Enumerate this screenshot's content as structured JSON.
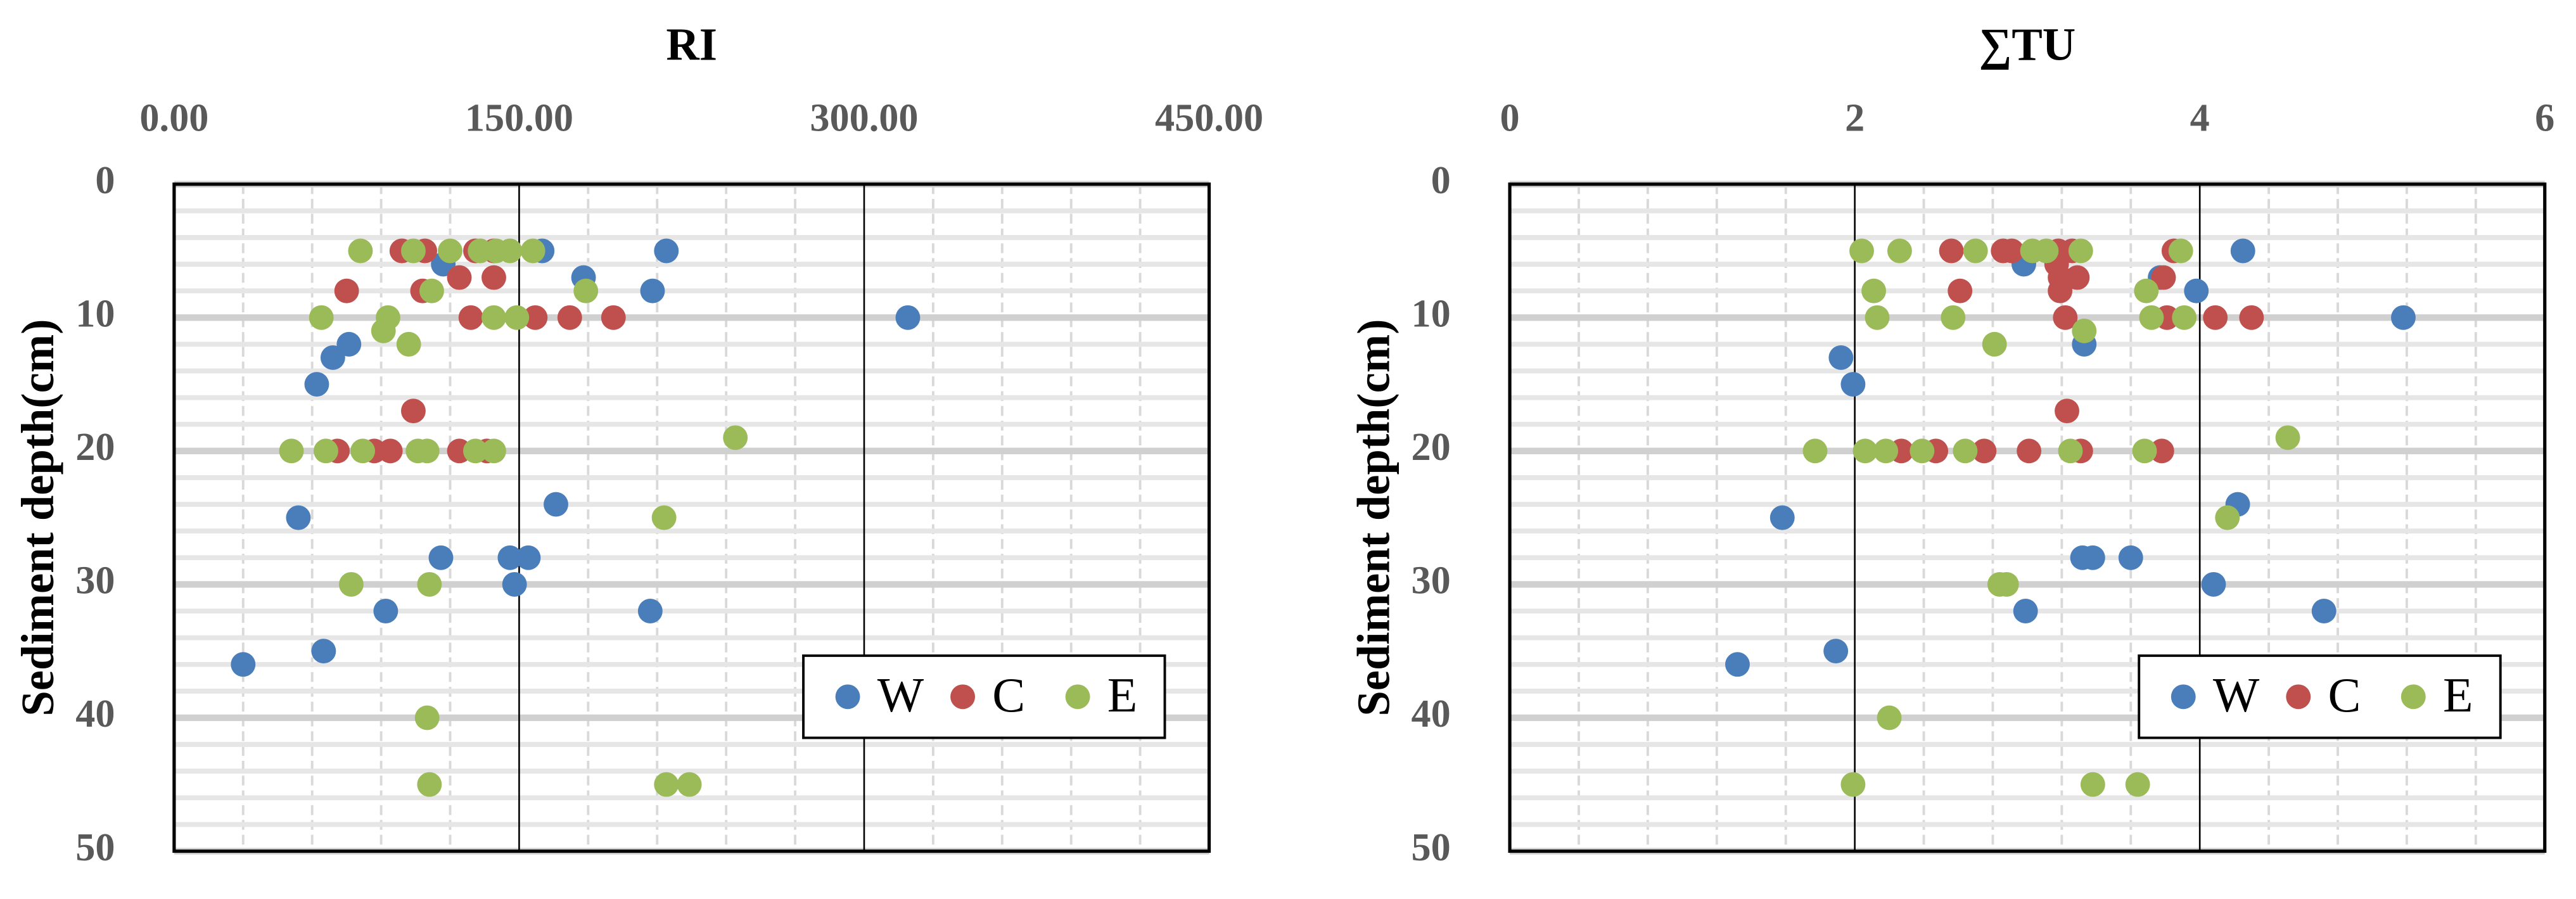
{
  "chart_data": [
    {
      "type": "scatter",
      "title": "RI",
      "y_label": "Sediment depth(cm)",
      "xlim": [
        0,
        450
      ],
      "xticks": [
        {
          "value": 0,
          "label": "0.00"
        },
        {
          "value": 150,
          "label": "150.00"
        },
        {
          "value": 300,
          "label": "300.00"
        },
        {
          "value": 450,
          "label": "450.00"
        }
      ],
      "ylim": [
        0,
        50
      ],
      "yticks": [
        0,
        10,
        20,
        30,
        40,
        50
      ],
      "y_reversed": true,
      "x_axis_position": "top",
      "grid": true,
      "minor_divisions": 5,
      "legend": "lower right",
      "series": [
        {
          "name": "W",
          "color": "#4a7ebb",
          "x": [
            160,
            214,
            117,
            178,
            208,
            319,
            76,
            69,
            62,
            166,
            54,
            116,
            146,
            154,
            148,
            92,
            207,
            65,
            30
          ],
          "values": [
            5,
            5,
            6,
            7,
            8,
            10,
            12,
            13,
            15,
            24,
            25,
            28,
            28,
            28,
            30,
            32,
            32,
            35,
            36
          ]
        },
        {
          "name": "C",
          "color": "#c0504d",
          "x": [
            99,
            109,
            131,
            139,
            124,
            139,
            75,
            108,
            129,
            157,
            172,
            191,
            104,
            71,
            87,
            94,
            124,
            136
          ],
          "values": [
            5,
            5,
            5,
            5,
            7,
            7,
            8,
            8,
            10,
            10,
            10,
            10,
            17,
            20,
            20,
            20,
            20,
            20
          ]
        },
        {
          "name": "E",
          "color": "#9bbb59",
          "x": [
            81,
            104,
            120,
            133,
            140,
            146,
            156,
            112,
            179,
            64,
            93,
            139,
            149,
            91,
            102,
            244,
            51,
            66,
            82,
            106,
            110,
            131,
            139,
            213,
            77,
            111,
            110,
            111,
            214,
            224
          ],
          "values": [
            5,
            5,
            5,
            5,
            5,
            5,
            5,
            8,
            8,
            10,
            10,
            10,
            10,
            11,
            12,
            19,
            20,
            20,
            20,
            20,
            20,
            20,
            20,
            25,
            30,
            30,
            40,
            45,
            45,
            45
          ]
        }
      ]
    },
    {
      "type": "scatter",
      "title": "∑TU",
      "y_label": "Sediment depth(cm)",
      "xlim": [
        0,
        6
      ],
      "xticks": [
        0,
        2,
        4,
        6
      ],
      "ylim": [
        0,
        50
      ],
      "yticks": [
        0,
        10,
        20,
        30,
        40,
        50
      ],
      "y_reversed": true,
      "x_axis_position": "top",
      "grid": true,
      "minor_divisions": 5,
      "legend": "lower right",
      "series": [
        {
          "name": "W",
          "color": "#4a7ebb",
          "x": [
            4.25,
            2.98,
            3.77,
            3.98,
            5.18,
            3.33,
            1.92,
            1.99,
            4.22,
            1.58,
            3.32,
            3.38,
            3.6,
            4.08,
            2.99,
            4.72,
            1.89,
            1.32
          ],
          "values": [
            5,
            6,
            7,
            8,
            10,
            12,
            13,
            15,
            24,
            25,
            28,
            28,
            28,
            30,
            32,
            32,
            35,
            36
          ]
        },
        {
          "name": "C",
          "color": "#c0504d",
          "x": [
            2.56,
            2.86,
            2.91,
            3.18,
            3.26,
            3.85,
            3.17,
            3.19,
            3.29,
            3.79,
            2.61,
            3.19,
            3.22,
            3.81,
            4.09,
            4.3,
            3.23,
            2.27,
            2.47,
            2.75,
            3.01,
            3.31,
            3.78
          ],
          "values": [
            5,
            5,
            5,
            5,
            5,
            5,
            6,
            7,
            7,
            7,
            8,
            8,
            10,
            10,
            10,
            10,
            17,
            20,
            20,
            20,
            20,
            20,
            20
          ]
        },
        {
          "name": "E",
          "color": "#9bbb59",
          "x": [
            2.04,
            2.26,
            2.7,
            3.03,
            3.11,
            3.31,
            3.89,
            2.11,
            3.69,
            2.13,
            2.57,
            3.72,
            3.91,
            3.33,
            2.81,
            4.51,
            1.77,
            2.06,
            2.18,
            2.39,
            2.64,
            3.25,
            3.68,
            4.16,
            2.84,
            2.88,
            2.2,
            1.99,
            3.38,
            3.64
          ],
          "values": [
            5,
            5,
            5,
            5,
            5,
            5,
            5,
            8,
            8,
            10,
            10,
            10,
            10,
            11,
            12,
            19,
            20,
            20,
            20,
            20,
            20,
            20,
            20,
            25,
            30,
            30,
            40,
            45,
            45,
            45
          ]
        }
      ]
    }
  ]
}
